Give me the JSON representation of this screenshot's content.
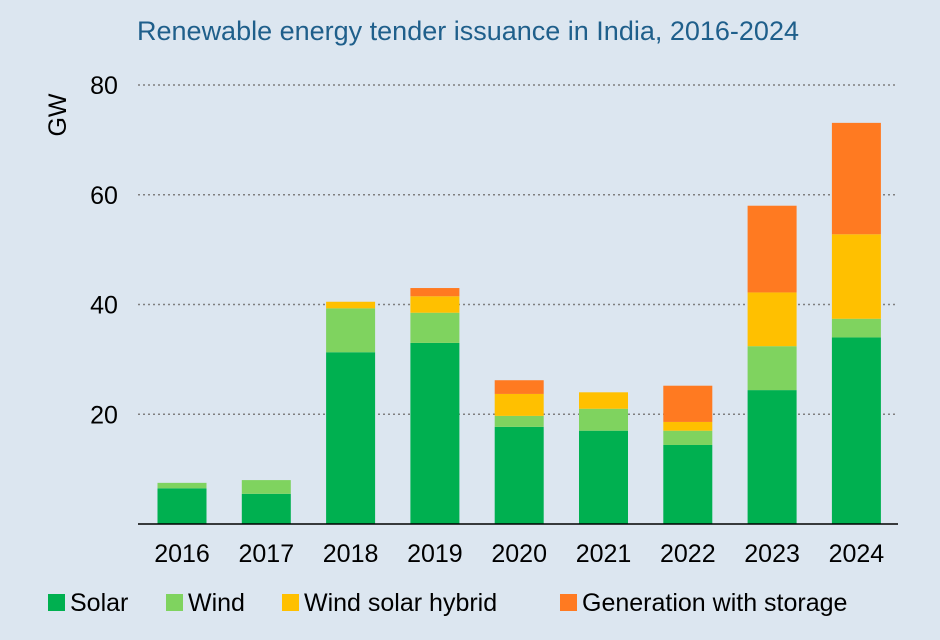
{
  "chart_data": {
    "type": "bar",
    "stacked": true,
    "title": "Renewable energy tender issuance in India, 2016-2024",
    "ylabel": "GW",
    "xlabel": "",
    "ylim": [
      0,
      80
    ],
    "yticks": [
      20,
      40,
      60,
      80
    ],
    "grid": true,
    "legend": "bottom",
    "categories": [
      "2016",
      "2017",
      "2018",
      "2019",
      "2020",
      "2021",
      "2022",
      "2023",
      "2024"
    ],
    "series": [
      {
        "name": "Solar",
        "color": "#00b050",
        "values": [
          6.5,
          5.5,
          31.3,
          33,
          17.7,
          17,
          14.4,
          24.4,
          34
        ]
      },
      {
        "name": "Wind",
        "color": "#7fd35f",
        "values": [
          1,
          2.5,
          8,
          5.5,
          2,
          4,
          2.6,
          8,
          3.4
        ]
      },
      {
        "name": "Wind solar hybrid",
        "color": "#ffc000",
        "values": [
          0,
          0,
          1.2,
          3,
          4,
          3,
          1.6,
          9.8,
          15.4
        ]
      },
      {
        "name": "Generation with storage",
        "color": "#ff7a21",
        "values": [
          0,
          0,
          0,
          1.5,
          2.5,
          0,
          6.6,
          15.8,
          20.3
        ]
      }
    ]
  }
}
